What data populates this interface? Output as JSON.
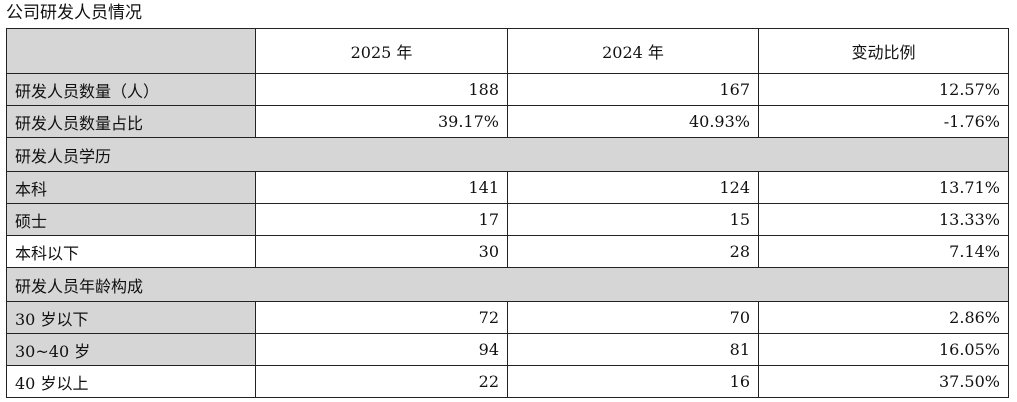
{
  "caption": "公司研发人员情况",
  "header": {
    "corner": "",
    "col_2025": "2025 年",
    "col_2024": "2024 年",
    "col_change": "变动比例"
  },
  "rows": [
    {
      "label": "研发人员数量（人）",
      "v2025": "188",
      "v2024": "167",
      "change": "12.57%"
    },
    {
      "label": "研发人员数量占比",
      "v2025": "39.17%",
      "v2024": "40.93%",
      "change": "-1.76%"
    }
  ],
  "sections": {
    "education": "研发人员学历",
    "age": "研发人员年龄构成"
  },
  "education_rows": [
    {
      "label": "本科",
      "v2025": "141",
      "v2024": "124",
      "change": "13.71%"
    },
    {
      "label": "硕士",
      "v2025": "17",
      "v2024": "15",
      "change": "13.33%"
    },
    {
      "label": "本科以下",
      "v2025": "30",
      "v2024": "28",
      "change": "7.14%"
    }
  ],
  "age_rows": [
    {
      "label": "30 岁以下",
      "v2025": "72",
      "v2024": "70",
      "change": "2.86%"
    },
    {
      "label": "30~40 岁",
      "v2025": "94",
      "v2024": "81",
      "change": "16.05%"
    },
    {
      "label": "40 岁以上",
      "v2025": "22",
      "v2024": "16",
      "change": "37.50%"
    }
  ],
  "colors": {
    "label_fill": "#d6d6d6",
    "border": "#222222"
  }
}
